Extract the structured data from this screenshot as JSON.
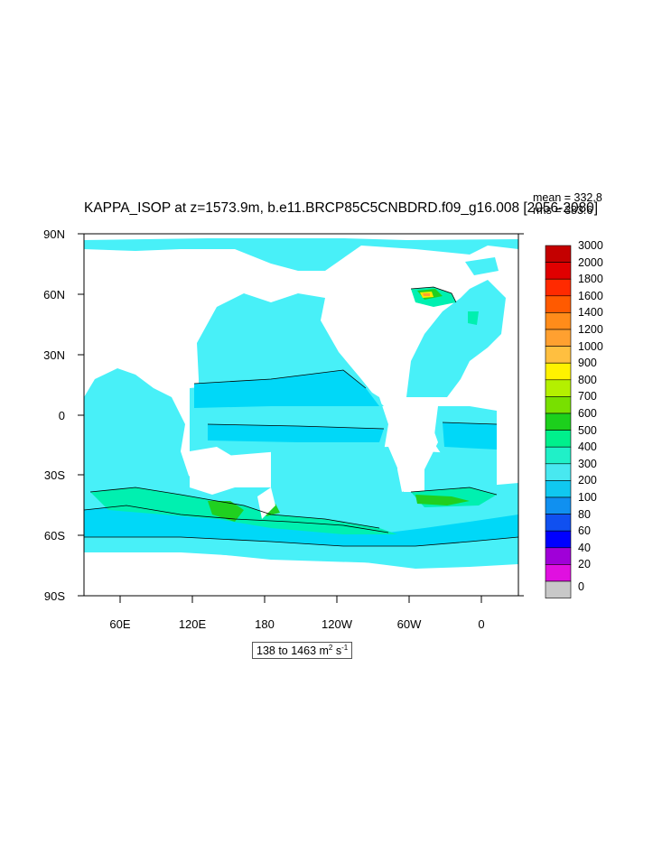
{
  "title": "KAPPA_ISOP at z=1573.9m, b.e11.BRCP85C5CNBDRD.f09_g16.008 [2056-2080]",
  "stats": {
    "mean": "mean = 332.8",
    "rms": "rms = 383.6"
  },
  "units": {
    "range_text": "138 to 1463 m",
    "u1": "2",
    "mid": " s",
    "u2": "-1"
  },
  "lat_labels": [
    "90N",
    "60N",
    "30N",
    "0",
    "30S",
    "60S",
    "90S"
  ],
  "lon_labels": [
    "60E",
    "120E",
    "180",
    "120W",
    "60W",
    "0"
  ],
  "colorbar": {
    "labels": [
      "3000",
      "2000",
      "1800",
      "1600",
      "1400",
      "1200",
      "1000",
      "900",
      "800",
      "700",
      "600",
      "500",
      "400",
      "300",
      "200",
      "100",
      "80",
      "60",
      "40",
      "20",
      "0"
    ],
    "colors": [
      "#c40000",
      "#e00000",
      "#ff2a00",
      "#ff5a00",
      "#ff8c1a",
      "#ffa030",
      "#ffbf40",
      "#fff200",
      "#b4f000",
      "#78e000",
      "#1cd01c",
      "#00f08c",
      "#20f0c8",
      "#48e8f0",
      "#10c8f0",
      "#1090f0",
      "#1050f0",
      "#0000ff",
      "#a000d8",
      "#e010e0",
      "#c8c8c8"
    ]
  },
  "map": {
    "ocean_base": "#48f0f8",
    "zone_300": "#00d8f8",
    "zone_500": "#00f0b0",
    "zone_600": "#20d020",
    "zone_900": "#ffe800",
    "zone_1200": "#ffa030",
    "land": "#ffffff"
  }
}
